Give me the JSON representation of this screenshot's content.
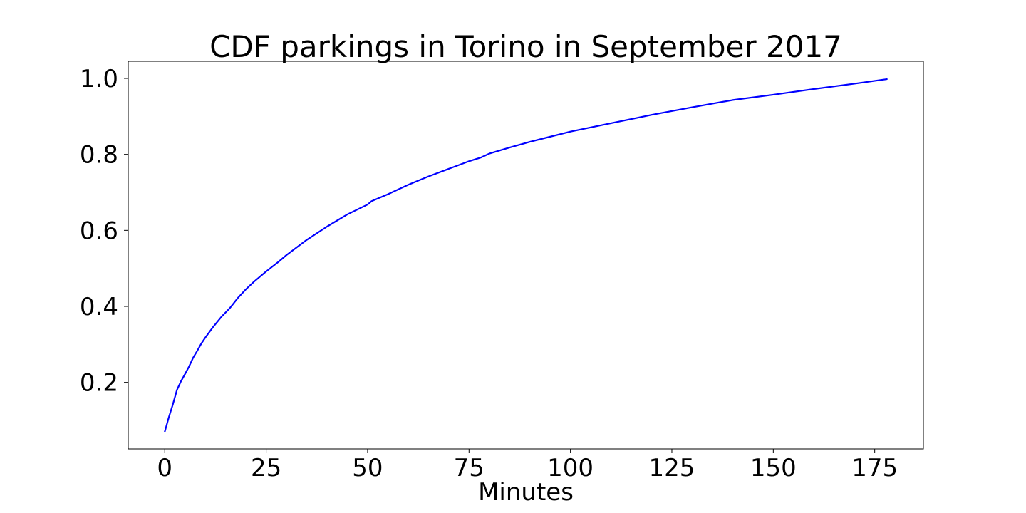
{
  "chart_data": {
    "type": "line",
    "title": "CDF parkings in Torino in September 2017",
    "xlabel": "Minutes",
    "ylabel": "",
    "xlim": [
      -9,
      187
    ],
    "ylim": [
      0.025,
      1.045
    ],
    "xticks": [
      0,
      25,
      50,
      75,
      100,
      125,
      150,
      175
    ],
    "xtick_labels": [
      "0",
      "25",
      "50",
      "75",
      "100",
      "125",
      "150",
      "175"
    ],
    "yticks": [
      0.2,
      0.4,
      0.6,
      0.8,
      1.0
    ],
    "ytick_labels": [
      "0.2",
      "0.4",
      "0.6",
      "0.8",
      "1.0"
    ],
    "grid": false,
    "series": [
      {
        "color": "#0000ff",
        "x": [
          0,
          1,
          2,
          3,
          4,
          5,
          6,
          7,
          8,
          9,
          10,
          12,
          14,
          16,
          18,
          20,
          22,
          25,
          28,
          30,
          35,
          40,
          45,
          50,
          51,
          55,
          60,
          65,
          70,
          75,
          78,
          80,
          85,
          90,
          100,
          110,
          120,
          130,
          140,
          150,
          160,
          170,
          178
        ],
        "y": [
          0.07,
          0.108,
          0.142,
          0.18,
          0.203,
          0.222,
          0.242,
          0.265,
          0.283,
          0.302,
          0.318,
          0.347,
          0.373,
          0.395,
          0.422,
          0.445,
          0.465,
          0.492,
          0.517,
          0.535,
          0.575,
          0.61,
          0.642,
          0.668,
          0.677,
          0.695,
          0.72,
          0.742,
          0.762,
          0.782,
          0.792,
          0.802,
          0.818,
          0.833,
          0.86,
          0.882,
          0.904,
          0.924,
          0.943,
          0.957,
          0.972,
          0.986,
          0.998
        ]
      }
    ]
  }
}
